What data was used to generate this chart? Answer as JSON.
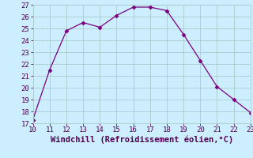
{
  "x": [
    10,
    11,
    12,
    13,
    14,
    15,
    16,
    17,
    18,
    19,
    20,
    21,
    22,
    23
  ],
  "y": [
    17.3,
    21.5,
    24.8,
    25.5,
    25.1,
    26.1,
    26.8,
    26.8,
    26.5,
    24.5,
    22.3,
    20.1,
    19.0,
    17.9
  ],
  "xlim": [
    10,
    23
  ],
  "ylim": [
    17,
    27
  ],
  "xticks": [
    10,
    11,
    12,
    13,
    14,
    15,
    16,
    17,
    18,
    19,
    20,
    21,
    22,
    23
  ],
  "yticks": [
    17,
    18,
    19,
    20,
    21,
    22,
    23,
    24,
    25,
    26,
    27
  ],
  "xlabel": "Windchill (Refroidissement éolien,°C)",
  "line_color": "#7b0080",
  "marker": "D",
  "marker_size": 2.5,
  "bg_color": "#cceeff",
  "grid_color": "#aacccc",
  "tick_fontsize": 6.5,
  "xlabel_fontsize": 7.5
}
